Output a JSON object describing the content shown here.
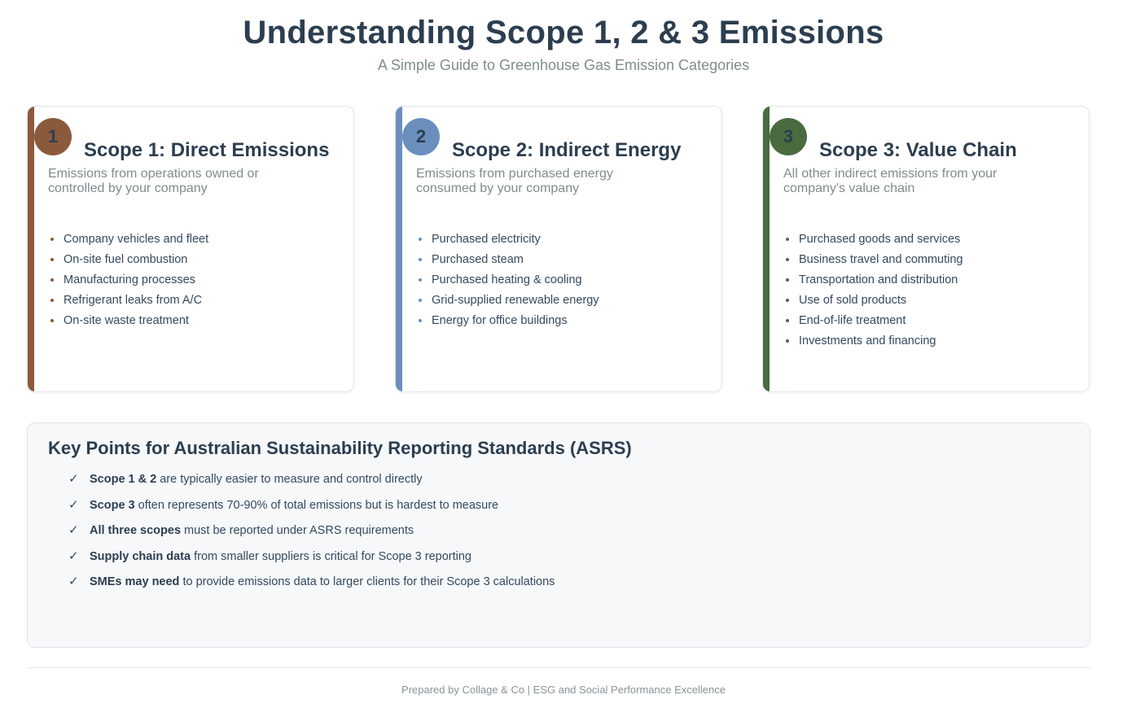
{
  "header": {
    "title": "Understanding Scope 1, 2 & 3 Emissions",
    "subtitle": "A Simple Guide to Greenhouse Gas Emission Categories"
  },
  "colors": {
    "scope1": "#8b5a3c",
    "scope2": "#6a8fbd",
    "scope3": "#4a6b3f",
    "title": "#2c3e50",
    "muted": "#7f8c8d"
  },
  "scopes": [
    {
      "number": "1",
      "title": "Scope 1: Direct Emissions",
      "description": "Emissions from operations owned or controlled by your company",
      "items": [
        "Company vehicles and fleet",
        "On-site fuel combustion",
        "Manufacturing processes",
        "Refrigerant leaks from A/C",
        "On-site waste treatment"
      ]
    },
    {
      "number": "2",
      "title": "Scope 2: Indirect Energy",
      "description": "Emissions from purchased energy consumed by your company",
      "items": [
        "Purchased electricity",
        "Purchased steam",
        "Purchased heating & cooling",
        "Grid-supplied renewable energy",
        "Energy for office buildings"
      ]
    },
    {
      "number": "3",
      "title": "Scope 3: Value Chain",
      "description": "All other indirect emissions from your company's value chain",
      "items": [
        "Purchased goods and services",
        "Business travel and commuting",
        "Transportation and distribution",
        "Use of sold products",
        "End-of-life treatment",
        "Investments and financing"
      ]
    }
  ],
  "key_points": {
    "title": "Key Points for Australian Sustainability Reporting Standards (ASRS)",
    "check_symbol": "✓",
    "items": [
      {
        "bold": "Scope 1 & 2",
        "text": " are typically easier to measure and control directly"
      },
      {
        "bold": "Scope 3",
        "text": " often represents 70-90% of total emissions but is hardest to measure"
      },
      {
        "bold": "All three scopes",
        "text": " must be reported under ASRS requirements"
      },
      {
        "bold": "Supply chain data",
        "text": " from smaller suppliers is critical for Scope 3 reporting"
      },
      {
        "bold": "SMEs may need",
        "text": " to provide emissions data to larger clients for their Scope 3 calculations"
      }
    ]
  },
  "footer": {
    "text": "Prepared by Collage & Co | ESG and Social Performance Excellence"
  }
}
